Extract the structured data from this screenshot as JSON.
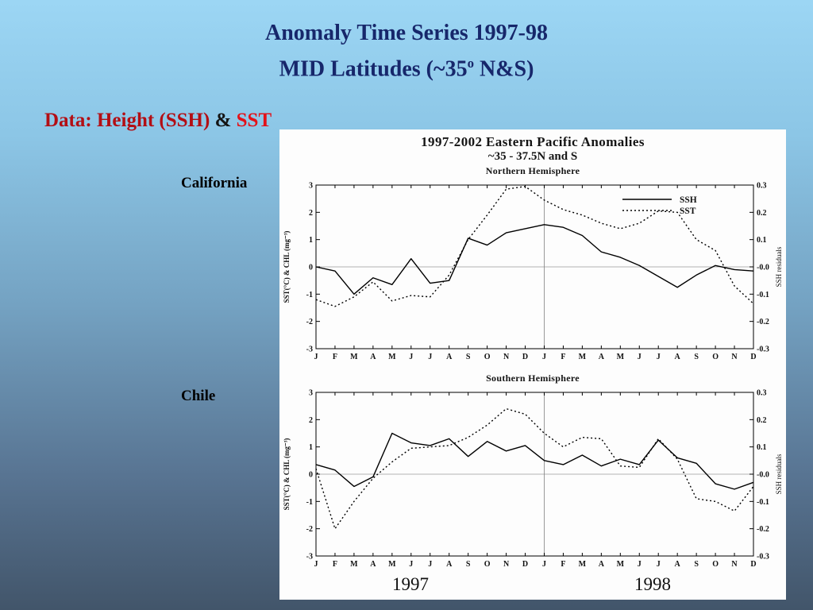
{
  "slide": {
    "title_line1": "Anomaly Time Series 1997-98",
    "subtitle_pre": "MID Latitudes (~35",
    "subtitle_sup": "o",
    "subtitle_post": " N&S)",
    "data_label_part1": "Data: Height (SSH)",
    "data_label_amp": " & ",
    "data_label_part2": "SST",
    "label_california": "California",
    "label_chile": "Chile",
    "colors": {
      "title_navy": "#17276b",
      "red_dark": "#b30e14",
      "red_bright": "#e31118",
      "bg_top": "#9cd6f4",
      "bg_bottom": "#42556a"
    }
  },
  "chart_data": [
    {
      "type": "line",
      "title": "1997-2002 Eastern Pacific Anomalies",
      "subtitle": "~35 - 37.5N and S",
      "panel_title": "Northern Hemisphere",
      "x": [
        "J",
        "F",
        "M",
        "A",
        "M",
        "J",
        "J",
        "A",
        "S",
        "O",
        "N",
        "D",
        "J",
        "F",
        "M",
        "A",
        "M",
        "J",
        "J",
        "A",
        "S",
        "O",
        "N",
        "D"
      ],
      "series": [
        {
          "name": "SSH",
          "style": "solid",
          "values": [
            0.0,
            -0.15,
            -1.0,
            -0.4,
            -0.65,
            0.3,
            -0.6,
            -0.5,
            1.05,
            0.8,
            1.25,
            1.4,
            1.55,
            1.45,
            1.15,
            0.55,
            0.35,
            0.05,
            -0.35,
            -0.75,
            -0.3,
            0.05,
            -0.1,
            -0.15
          ]
        },
        {
          "name": "SST",
          "style": "dotted",
          "values": [
            -1.2,
            -1.45,
            -1.1,
            -0.55,
            -1.25,
            -1.05,
            -1.1,
            -0.3,
            1.0,
            1.9,
            2.85,
            2.95,
            2.45,
            2.1,
            1.9,
            1.6,
            1.4,
            1.6,
            2.05,
            2.0,
            1.0,
            0.6,
            -0.7,
            -1.35
          ]
        }
      ],
      "ylabel_left": "SST(°C) & CHL (mg⁻³)",
      "ylabel_right": "SSH residuals",
      "ylim_left": [
        -3,
        3
      ],
      "ylim_right": [
        -0.3,
        0.3
      ],
      "yticks_left": [
        "3",
        "2",
        "1",
        "0",
        "-1",
        "-2",
        "-3"
      ],
      "yticks_right": [
        "0.3",
        "0.2",
        "0.1",
        "-0.0",
        "-0.1",
        "-0.2",
        "-0.3"
      ],
      "legend": [
        "SSH",
        "SST"
      ],
      "legend_position": "top-right",
      "grid": "zero-line only, vertical divider at Jan 1998",
      "year_labels": [
        "1997",
        "1998"
      ]
    },
    {
      "type": "line",
      "title": "1997-2002 Eastern Pacific Anomalies",
      "subtitle": "~35 - 37.5N and S",
      "panel_title": "Southern Hemisphere",
      "x": [
        "J",
        "F",
        "M",
        "A",
        "M",
        "J",
        "J",
        "A",
        "S",
        "O",
        "N",
        "D",
        "J",
        "F",
        "M",
        "A",
        "M",
        "J",
        "J",
        "A",
        "S",
        "O",
        "N",
        "D"
      ],
      "series": [
        {
          "name": "SSH",
          "style": "solid",
          "values": [
            0.35,
            0.15,
            -0.45,
            -0.1,
            1.5,
            1.15,
            1.05,
            1.3,
            0.65,
            1.2,
            0.85,
            1.05,
            0.5,
            0.35,
            0.7,
            0.3,
            0.55,
            0.35,
            1.25,
            0.6,
            0.4,
            -0.35,
            -0.55,
            -0.3
          ]
        },
        {
          "name": "SST",
          "style": "dotted",
          "values": [
            0.2,
            -2.0,
            -1.0,
            -0.15,
            0.45,
            0.95,
            1.0,
            1.05,
            1.35,
            1.8,
            2.4,
            2.2,
            1.5,
            1.0,
            1.35,
            1.3,
            0.3,
            0.25,
            1.3,
            0.55,
            -0.9,
            -1.0,
            -1.35,
            -0.45
          ]
        }
      ],
      "ylabel_left": "SST(°C) & CHL (mg⁻³)",
      "ylabel_right": "SSH residuals",
      "ylim_left": [
        -3,
        3
      ],
      "ylim_right": [
        -0.3,
        0.3
      ],
      "yticks_left": [
        "3",
        "2",
        "1",
        "0",
        "-1",
        "-2",
        "-3"
      ],
      "yticks_right": [
        "0.3",
        "0.2",
        "0.1",
        "-0.0",
        "-0.1",
        "-0.2",
        "-0.3"
      ],
      "legend": [],
      "grid": "zero-line only, vertical divider at Jan 1998",
      "year_labels": [
        "1997",
        "1998"
      ]
    }
  ]
}
